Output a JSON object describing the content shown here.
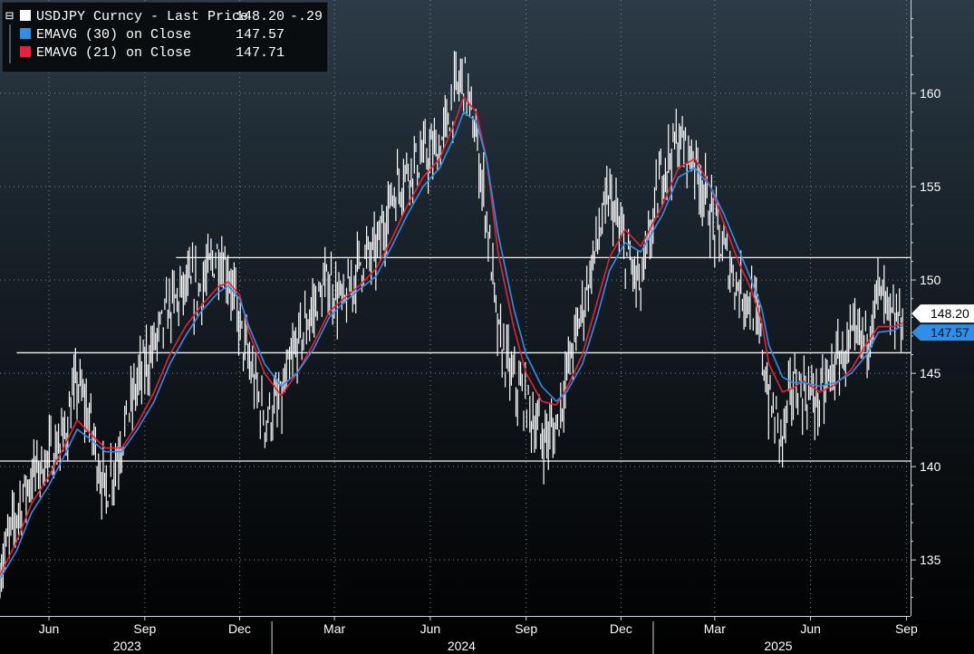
{
  "chart_data": {
    "type": "line",
    "instrument": "USDJPY Curncy",
    "ylim": [
      132,
      165
    ],
    "y_ticks": [
      135,
      140,
      145,
      150,
      155,
      160
    ],
    "grid": true,
    "legend_position": "top-left",
    "legend": [
      {
        "label": "USDJPY Curncy - Last Price",
        "value": "148.20",
        "change": "-.29",
        "color": "#ffffff"
      },
      {
        "label": "EMAVG (30)  on Close",
        "value": "147.57",
        "change": "",
        "color": "#2f8fe8"
      },
      {
        "label": "EMAVG (21)  on Close",
        "value": "147.71",
        "change": "",
        "color": "#e8203a"
      }
    ],
    "last_price_tag": "148.20",
    "ema30_tag": "147.57",
    "month_ticks": [
      "Jun",
      "Sep",
      "Dec",
      "Mar",
      "Jun",
      "Sep",
      "Dec",
      "Mar",
      "Jun",
      "Sep"
    ],
    "year_labels": [
      "2023",
      "2024",
      "2025"
    ],
    "horizontal_levels": [
      151.2,
      146.1,
      140.3
    ],
    "x": [
      "2023-04-15",
      "2023-05-01",
      "2023-05-15",
      "2023-06-01",
      "2023-06-15",
      "2023-06-28",
      "2023-07-10",
      "2023-07-25",
      "2023-08-10",
      "2023-08-25",
      "2023-09-10",
      "2023-09-25",
      "2023-10-10",
      "2023-10-25",
      "2023-11-10",
      "2023-11-20",
      "2023-12-01",
      "2023-12-10",
      "2023-12-25",
      "2024-01-10",
      "2024-01-25",
      "2024-02-10",
      "2024-02-25",
      "2024-03-10",
      "2024-03-25",
      "2024-04-10",
      "2024-04-25",
      "2024-05-10",
      "2024-05-25",
      "2024-06-10",
      "2024-06-25",
      "2024-07-03",
      "2024-07-15",
      "2024-07-25",
      "2024-08-05",
      "2024-08-20",
      "2024-09-01",
      "2024-09-16",
      "2024-09-30",
      "2024-10-10",
      "2024-10-25",
      "2024-11-08",
      "2024-11-20",
      "2024-12-05",
      "2024-12-20",
      "2025-01-10",
      "2025-01-25",
      "2025-02-10",
      "2025-02-25",
      "2025-03-10",
      "2025-03-25",
      "2025-04-05",
      "2025-04-15",
      "2025-04-22",
      "2025-05-05",
      "2025-05-15",
      "2025-05-25",
      "2025-06-10",
      "2025-06-25",
      "2025-07-10",
      "2025-07-25",
      "2025-08-05",
      "2025-08-20",
      "2025-08-29"
    ],
    "series": [
      {
        "name": "USDJPY Curncy - Last Price",
        "color": "#ffffff",
        "values": [
          134.5,
          137.5,
          139.5,
          140.5,
          141.5,
          144.5,
          142.5,
          138.5,
          141.5,
          144.5,
          146.5,
          148.5,
          149.5,
          149.5,
          151.5,
          150.5,
          147.5,
          145.5,
          142.5,
          143.5,
          146.5,
          148.5,
          150.0,
          148.5,
          151.0,
          151.5,
          154.5,
          156.0,
          156.5,
          157.0,
          160.0,
          161.0,
          157.5,
          153.5,
          147.0,
          144.5,
          143.5,
          141.5,
          142.0,
          145.0,
          148.5,
          152.0,
          154.5,
          151.5,
          149.5,
          156.0,
          157.5,
          156.5,
          153.5,
          151.5,
          149.5,
          149.0,
          146.5,
          143.5,
          141.5,
          144.5,
          144.0,
          143.5,
          145.5,
          146.5,
          147.0,
          149.5,
          147.5,
          148.2
        ]
      },
      {
        "name": "EMAVG (30)  on Close",
        "color": "#2f8fe8",
        "values": [
          134.0,
          135.5,
          137.5,
          139.0,
          140.5,
          142.0,
          141.5,
          140.8,
          140.8,
          142.0,
          143.5,
          145.5,
          147.0,
          148.3,
          149.3,
          149.7,
          149.0,
          147.5,
          145.5,
          144.3,
          145.0,
          146.3,
          148.0,
          148.8,
          149.5,
          150.2,
          151.8,
          153.5,
          155.0,
          156.0,
          157.8,
          159.0,
          158.5,
          156.5,
          152.5,
          148.5,
          146.0,
          144.3,
          143.5,
          144.0,
          145.5,
          148.0,
          150.5,
          152.0,
          151.5,
          153.5,
          155.5,
          156.0,
          155.0,
          153.5,
          151.5,
          150.0,
          148.5,
          146.5,
          144.8,
          144.5,
          144.5,
          144.3,
          144.5,
          145.0,
          146.0,
          147.2,
          147.3,
          147.57
        ]
      },
      {
        "name": "EMAVG (21)  on Close",
        "color": "#e8203a",
        "values": [
          134.2,
          136.0,
          138.0,
          139.5,
          141.0,
          142.5,
          141.8,
          141.0,
          141.0,
          142.3,
          144.0,
          146.0,
          147.5,
          148.6,
          149.6,
          149.9,
          149.2,
          147.2,
          145.0,
          143.8,
          145.0,
          146.6,
          148.3,
          149.0,
          149.7,
          150.6,
          152.2,
          154.0,
          155.5,
          156.5,
          158.5,
          159.8,
          159.0,
          156.5,
          151.5,
          147.5,
          145.0,
          143.5,
          143.3,
          144.2,
          146.0,
          148.8,
          151.2,
          152.7,
          151.8,
          154.0,
          156.0,
          156.5,
          155.0,
          153.0,
          150.8,
          149.5,
          147.8,
          145.5,
          144.0,
          144.2,
          144.6,
          144.0,
          144.4,
          145.2,
          146.6,
          147.5,
          147.5,
          147.71
        ]
      }
    ]
  }
}
